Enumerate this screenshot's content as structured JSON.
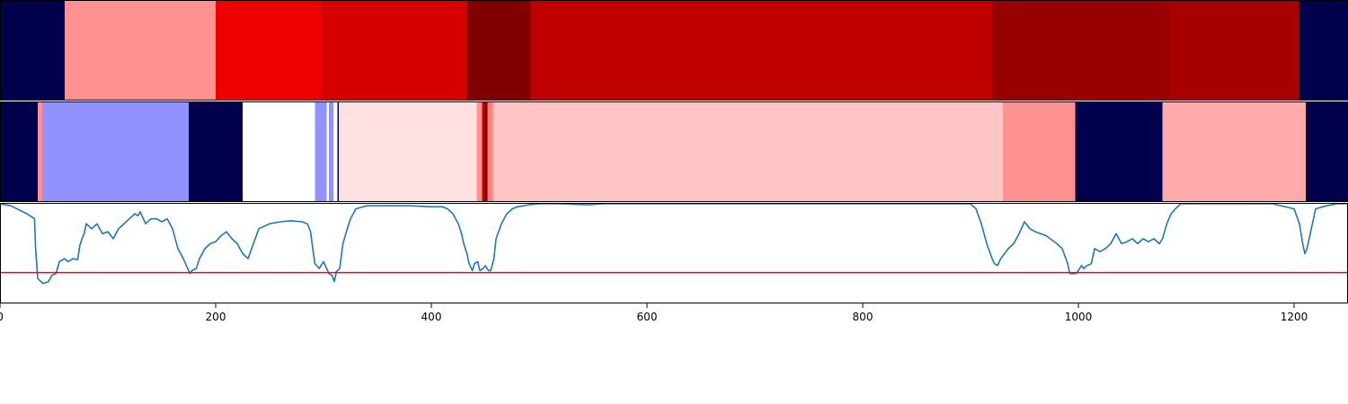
{
  "chart_data": {
    "type": "heatmap",
    "title": "",
    "xlabel": "",
    "ylabel": "",
    "xlim": [
      0,
      1250
    ],
    "grid": false,
    "legend": "none",
    "xticks": [
      {
        "value": 0,
        "label": "0"
      },
      {
        "value": 200,
        "label": "200"
      },
      {
        "value": 400,
        "label": "400"
      },
      {
        "value": 600,
        "label": "600"
      },
      {
        "value": 800,
        "label": "800"
      },
      {
        "value": 1000,
        "label": "1000"
      },
      {
        "value": 1200,
        "label": "1200"
      }
    ],
    "segment_tracks": [
      {
        "name": "top-segment-track",
        "segments": [
          {
            "start": 0,
            "end": 60,
            "color": "#00004c"
          },
          {
            "start": 60,
            "end": 200,
            "color": "#ff9191"
          },
          {
            "start": 200,
            "end": 298,
            "color": "#ee0000"
          },
          {
            "start": 298,
            "end": 433,
            "color": "#d70000"
          },
          {
            "start": 433,
            "end": 492,
            "color": "#800000"
          },
          {
            "start": 492,
            "end": 920,
            "color": "#c00000"
          },
          {
            "start": 920,
            "end": 1085,
            "color": "#990000"
          },
          {
            "start": 1085,
            "end": 1205,
            "color": "#a80000"
          },
          {
            "start": 1205,
            "end": 1250,
            "color": "#00004c"
          }
        ]
      },
      {
        "name": "middle-segment-track",
        "segments": [
          {
            "start": 0,
            "end": 35,
            "color": "#00004c"
          },
          {
            "start": 35,
            "end": 39,
            "color": "#ff9191"
          },
          {
            "start": 39,
            "end": 175,
            "color": "#9191ff"
          },
          {
            "start": 175,
            "end": 225,
            "color": "#00004c"
          },
          {
            "start": 225,
            "end": 292,
            "color": "#ffffff"
          },
          {
            "start": 292,
            "end": 303,
            "color": "#9191ff"
          },
          {
            "start": 303,
            "end": 305,
            "color": "#ffffff"
          },
          {
            "start": 305,
            "end": 309,
            "color": "#9191ff"
          },
          {
            "start": 309,
            "end": 313,
            "color": "#ffffff"
          },
          {
            "start": 313,
            "end": 314,
            "color": "#00004c"
          },
          {
            "start": 314,
            "end": 442,
            "color": "#ffe0e0"
          },
          {
            "start": 442,
            "end": 447,
            "color": "#ff9191"
          },
          {
            "start": 447,
            "end": 449,
            "color": "#c00000"
          },
          {
            "start": 449,
            "end": 452,
            "color": "#800000"
          },
          {
            "start": 452,
            "end": 457,
            "color": "#ff8080"
          },
          {
            "start": 457,
            "end": 930,
            "color": "#ffc4c4"
          },
          {
            "start": 930,
            "end": 997,
            "color": "#ff9191"
          },
          {
            "start": 997,
            "end": 1078,
            "color": "#00004c"
          },
          {
            "start": 1078,
            "end": 1211,
            "color": "#ffaaaa"
          },
          {
            "start": 1211,
            "end": 1250,
            "color": "#00004c"
          }
        ]
      }
    ],
    "line_panel": {
      "ylim": [
        0,
        1
      ],
      "threshold": 0.31,
      "threshold_color": "#ff0000",
      "line_color": "#1f77b4",
      "series": [
        {
          "name": "signal",
          "x": [
            0,
            10,
            25,
            32,
            33,
            35,
            40,
            45,
            48,
            52,
            55,
            60,
            63,
            68,
            72,
            74,
            76,
            78,
            80,
            85,
            90,
            95,
            100,
            105,
            110,
            115,
            120,
            125,
            128,
            130,
            135,
            140,
            145,
            150,
            155,
            160,
            165,
            170,
            172,
            174,
            176,
            178,
            182,
            185,
            190,
            195,
            200,
            205,
            210,
            215,
            220,
            225,
            230,
            235,
            240,
            250,
            260,
            270,
            280,
            285,
            288,
            290,
            292,
            296,
            300,
            305,
            308,
            310,
            312,
            315,
            318,
            322,
            325,
            330,
            340,
            360,
            380,
            400,
            410,
            415,
            420,
            425,
            428,
            430,
            433,
            435,
            438,
            440,
            443,
            445,
            448,
            450,
            453,
            455,
            458,
            460,
            465,
            470,
            475,
            480,
            490,
            500,
            520,
            545,
            560,
            600,
            700,
            800,
            900,
            905,
            910,
            915,
            920,
            922,
            925,
            928,
            935,
            940,
            945,
            950,
            955,
            960,
            970,
            980,
            985,
            990,
            992,
            995,
            998,
            1003,
            1005,
            1008,
            1012,
            1015,
            1020,
            1025,
            1030,
            1035,
            1040,
            1045,
            1050,
            1055,
            1060,
            1065,
            1070,
            1075,
            1078,
            1082,
            1086,
            1090,
            1095,
            1100,
            1120,
            1150,
            1180,
            1200,
            1205,
            1208,
            1210,
            1212,
            1215,
            1220,
            1230,
            1240,
            1250
          ],
          "y": [
            1.0,
            0.98,
            0.9,
            0.85,
            0.55,
            0.25,
            0.2,
            0.22,
            0.28,
            0.3,
            0.42,
            0.45,
            0.42,
            0.45,
            0.44,
            0.58,
            0.65,
            0.7,
            0.8,
            0.75,
            0.8,
            0.7,
            0.72,
            0.65,
            0.75,
            0.8,
            0.85,
            0.9,
            0.88,
            0.92,
            0.8,
            0.85,
            0.85,
            0.82,
            0.85,
            0.75,
            0.55,
            0.45,
            0.4,
            0.35,
            0.3,
            0.33,
            0.35,
            0.45,
            0.55,
            0.6,
            0.62,
            0.68,
            0.72,
            0.65,
            0.6,
            0.5,
            0.45,
            0.6,
            0.75,
            0.8,
            0.82,
            0.83,
            0.82,
            0.8,
            0.72,
            0.55,
            0.4,
            0.35,
            0.42,
            0.3,
            0.28,
            0.22,
            0.32,
            0.35,
            0.6,
            0.75,
            0.85,
            0.95,
            0.98,
            0.98,
            0.98,
            0.97,
            0.97,
            0.95,
            0.9,
            0.8,
            0.7,
            0.6,
            0.5,
            0.4,
            0.33,
            0.4,
            0.42,
            0.33,
            0.35,
            0.38,
            0.33,
            0.33,
            0.45,
            0.65,
            0.8,
            0.9,
            0.95,
            0.97,
            0.99,
            1.0,
            1.0,
            0.99,
            1.0,
            1.0,
            1.0,
            1.0,
            1.0,
            0.95,
            0.8,
            0.6,
            0.45,
            0.4,
            0.38,
            0.45,
            0.55,
            0.6,
            0.7,
            0.82,
            0.75,
            0.72,
            0.68,
            0.6,
            0.55,
            0.4,
            0.3,
            0.3,
            0.3,
            0.38,
            0.35,
            0.38,
            0.4,
            0.55,
            0.52,
            0.55,
            0.6,
            0.7,
            0.6,
            0.62,
            0.65,
            0.6,
            0.65,
            0.62,
            0.65,
            0.6,
            0.65,
            0.8,
            0.9,
            0.95,
            1.0,
            1.0,
            1.0,
            1.0,
            1.0,
            0.95,
            0.8,
            0.6,
            0.5,
            0.55,
            0.7,
            0.95,
            0.98,
            1.0,
            1.0
          ]
        }
      ]
    }
  }
}
